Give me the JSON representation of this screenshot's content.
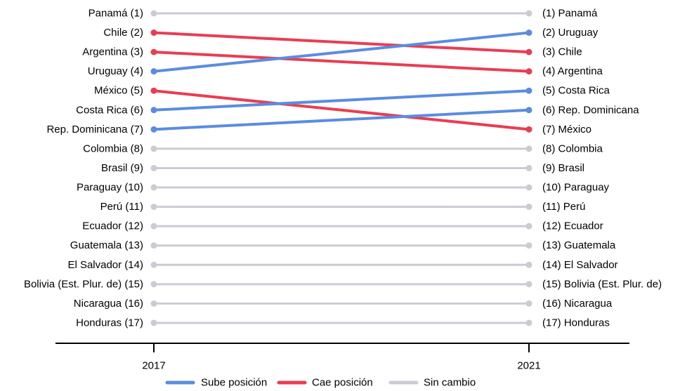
{
  "chart_data": {
    "type": "slope",
    "x": [
      "2017",
      "2021"
    ],
    "series": [
      {
        "country": "Panamá",
        "rank_2017": 1,
        "rank_2021": 1,
        "status": "same"
      },
      {
        "country": "Chile",
        "rank_2017": 2,
        "rank_2021": 3,
        "status": "down"
      },
      {
        "country": "Argentina",
        "rank_2017": 3,
        "rank_2021": 4,
        "status": "down"
      },
      {
        "country": "Uruguay",
        "rank_2017": 4,
        "rank_2021": 2,
        "status": "up"
      },
      {
        "country": "México",
        "rank_2017": 5,
        "rank_2021": 7,
        "status": "down"
      },
      {
        "country": "Costa Rica",
        "rank_2017": 6,
        "rank_2021": 5,
        "status": "up"
      },
      {
        "country": "Rep. Dominicana",
        "rank_2017": 7,
        "rank_2021": 6,
        "status": "up"
      },
      {
        "country": "Colombia",
        "rank_2017": 8,
        "rank_2021": 8,
        "status": "same"
      },
      {
        "country": "Brasil",
        "rank_2017": 9,
        "rank_2021": 9,
        "status": "same"
      },
      {
        "country": "Paraguay",
        "rank_2017": 10,
        "rank_2021": 10,
        "status": "same"
      },
      {
        "country": "Perú",
        "rank_2017": 11,
        "rank_2021": 11,
        "status": "same"
      },
      {
        "country": "Ecuador",
        "rank_2017": 12,
        "rank_2021": 12,
        "status": "same"
      },
      {
        "country": "Guatemala",
        "rank_2017": 13,
        "rank_2021": 13,
        "status": "same"
      },
      {
        "country": "El Salvador",
        "rank_2017": 14,
        "rank_2021": 14,
        "status": "same"
      },
      {
        "country": "Bolivia (Est. Plur. de)",
        "rank_2017": 15,
        "rank_2021": 15,
        "status": "same"
      },
      {
        "country": "Nicaragua",
        "rank_2017": 16,
        "rank_2021": 16,
        "status": "same"
      },
      {
        "country": "Honduras",
        "rank_2017": 17,
        "rank_2021": 17,
        "status": "same"
      }
    ],
    "legend": [
      {
        "key": "up",
        "label": "Sube posición",
        "color": "#5b8ce0"
      },
      {
        "key": "down",
        "label": "Cae posición",
        "color": "#e83e52"
      },
      {
        "key": "same",
        "label": "Sin cambio",
        "color": "#cbcbd4"
      }
    ],
    "legend_position": "bottom",
    "grid": false
  }
}
